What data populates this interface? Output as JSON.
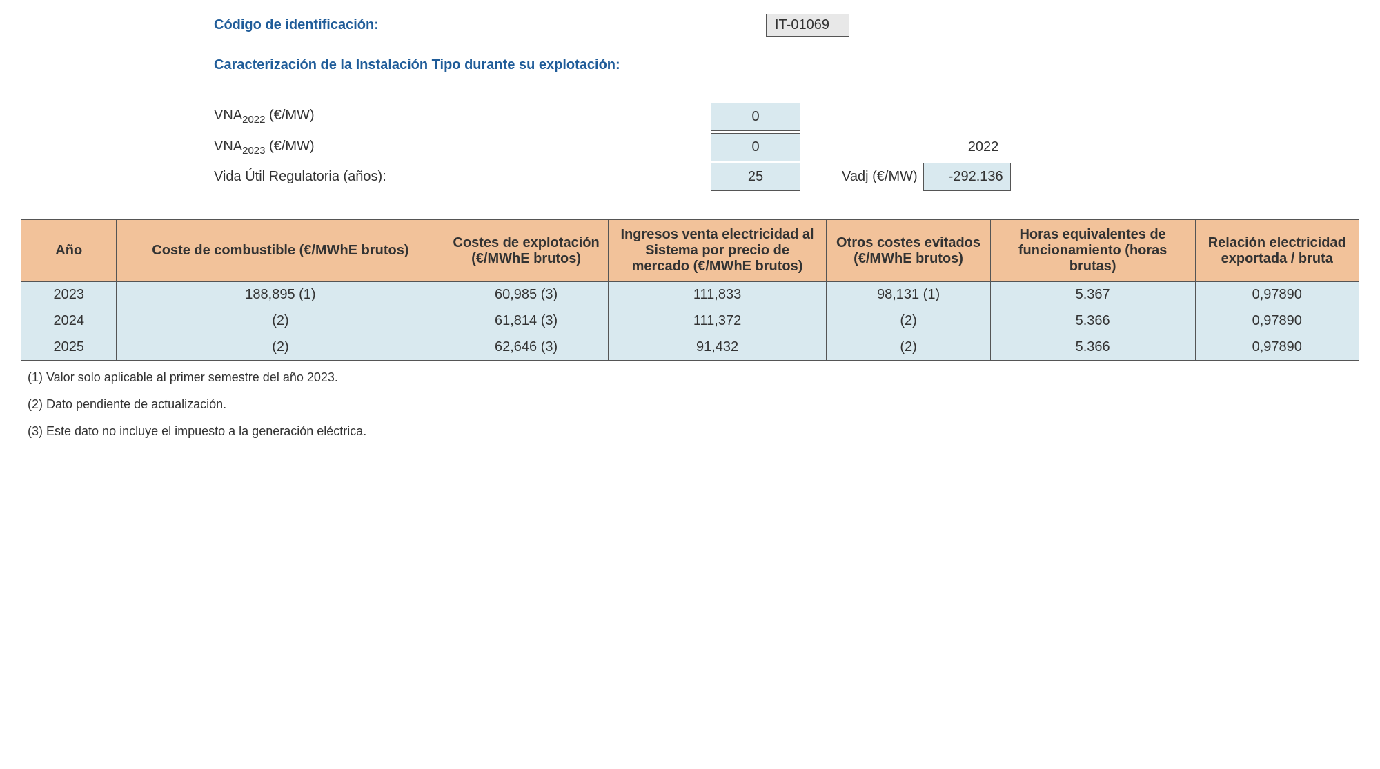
{
  "header": {
    "code_label": "Código de identificación:",
    "code_value": "IT-01069",
    "section_title": "Caracterización de la Instalación Tipo durante su explotación:"
  },
  "params": {
    "vna2022_label": "VNA",
    "vna2022_sub": "2022",
    "vna2022_unit": " (€/MW)",
    "vna2022_value": "0",
    "vna2023_label": "VNA",
    "vna2023_sub": "2023",
    "vna2023_unit": " (€/MW)",
    "vna2023_value": "0",
    "year_right": "2022",
    "vida_label": "Vida Útil Regulatoria (años):",
    "vida_value": "25",
    "vadj_label": "Vadj (€/MW)",
    "vadj_value": "-292.136"
  },
  "table": {
    "columns": [
      "Año",
      "Coste de combustible (€/MWhE brutos)",
      "Costes de explotación (€/MWhE brutos)",
      "Ingresos venta electricidad al Sistema por precio de mercado (€/MWhE brutos)",
      "Otros costes evitados (€/MWhE brutos)",
      "Horas equivalentes de funcionamiento (horas brutas)",
      "Relación electricidad exportada / bruta"
    ],
    "rows": [
      [
        "2023",
        "188,895 (1)",
        "60,985 (3)",
        "111,833",
        "98,131 (1)",
        "5.367",
        "0,97890"
      ],
      [
        "2024",
        "(2)",
        "61,814 (3)",
        "111,372",
        "(2)",
        "5.366",
        "0,97890"
      ],
      [
        "2025",
        "(2)",
        "62,646 (3)",
        "91,432",
        "(2)",
        "5.366",
        "0,97890"
      ]
    ]
  },
  "footnotes": [
    "(1) Valor solo aplicable al primer semestre del año 2023.",
    "(2) Dato pendiente de actualización.",
    "(3) Este dato no incluye el impuesto a la generación eléctrica."
  ]
}
